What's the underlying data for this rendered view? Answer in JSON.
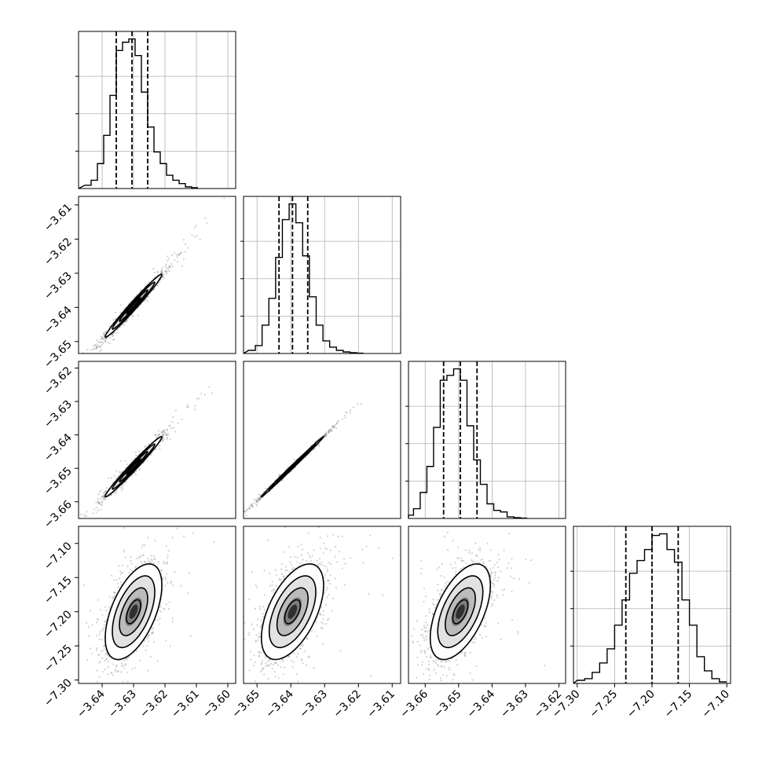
{
  "chart_data": [
    {
      "type": "histogram",
      "parameter": 1,
      "x_ticks": [
        "−3.64",
        "−3.63",
        "−3.62",
        "−3.61",
        "−3.60"
      ],
      "quantiles": [
        -3.6355,
        -3.6305,
        -3.6255
      ],
      "bin_centers": [
        -3.6445,
        -3.6425,
        -3.6405,
        -3.6385,
        -3.6365,
        -3.6345,
        -3.6325,
        -3.6305,
        -3.6285,
        -3.6265,
        -3.6245,
        -3.6225,
        -3.6205,
        -3.6185,
        -3.6165,
        -3.6145,
        -3.6125,
        -3.6105
      ],
      "counts": [
        2,
        5,
        15,
        32,
        56,
        83,
        88,
        90,
        80,
        58,
        37,
        22,
        15,
        8,
        5,
        3,
        1,
        0.5
      ]
    },
    {
      "type": "histogram",
      "parameter": 2,
      "x_ticks": [
        "−3.65",
        "−3.64",
        "−3.63",
        "−3.62",
        "−3.61"
      ],
      "quantiles": [
        -3.6435,
        -3.6395,
        -3.635
      ],
      "bin_centers": [
        -3.6515,
        -3.6495,
        -3.6475,
        -3.6455,
        -3.6435,
        -3.6415,
        -3.6395,
        -3.6375,
        -3.6355,
        -3.6335,
        -3.6315,
        -3.6295,
        -3.6275,
        -3.6255,
        -3.6235,
        -3.6215,
        -3.6195
      ],
      "counts": [
        2,
        5,
        18,
        35,
        61,
        85,
        95,
        83,
        62,
        36,
        18,
        8,
        4,
        2,
        1,
        0.5,
        0.2
      ]
    },
    {
      "type": "histogram",
      "parameter": 3,
      "x_ticks": [
        "−3.66",
        "−3.65",
        "−3.64",
        "−3.63",
        "−3.62"
      ],
      "quantiles": [
        -3.6545,
        -3.6495,
        -3.6445
      ],
      "bin_centers": [
        -3.6645,
        -3.6625,
        -3.6605,
        -3.6585,
        -3.6565,
        -3.6545,
        -3.6525,
        -3.6505,
        -3.6485,
        -3.6465,
        -3.6445,
        -3.6425,
        -3.6405,
        -3.6385,
        -3.6365,
        -3.6345,
        -3.6325,
        -3.6305
      ],
      "counts": [
        2,
        6,
        16,
        32,
        56,
        85,
        88,
        92,
        85,
        57,
        36,
        21,
        9,
        5,
        4,
        1,
        0.5,
        0.2
      ]
    },
    {
      "type": "histogram",
      "parameter": 4,
      "x_ticks": [
        "−7.30",
        "−7.25",
        "−7.20",
        "−7.15",
        "−7.10"
      ],
      "quantiles": [
        -7.235,
        -7.2,
        -7.165
      ],
      "bin_centers": [
        -7.295,
        -7.285,
        -7.275,
        -7.265,
        -7.255,
        -7.245,
        -7.235,
        -7.225,
        -7.215,
        -7.205,
        -7.195,
        -7.185,
        -7.175,
        -7.165,
        -7.155,
        -7.145,
        -7.135,
        -7.125,
        -7.115,
        -7.105
      ],
      "counts": [
        2,
        3,
        7,
        13,
        22,
        37,
        53,
        70,
        78,
        85,
        94,
        95,
        85,
        77,
        53,
        37,
        17,
        8,
        3,
        1
      ]
    },
    {
      "type": "scatter-contour",
      "pair": [
        1,
        2
      ],
      "x_range": [
        -3.6475,
        -3.5975
      ],
      "y_range": [
        -3.6535,
        -3.6075
      ],
      "y_ticks": [
        "−3.61",
        "−3.62",
        "−3.63",
        "−3.64",
        "−3.65"
      ],
      "center": [
        -3.63,
        -3.6395
      ],
      "sd": [
        0.0045,
        0.0046
      ],
      "rho": 0.985
    },
    {
      "type": "scatter-contour",
      "pair": [
        1,
        3
      ],
      "x_range": [
        -3.6475,
        -3.5975
      ],
      "y_range": [
        -3.665,
        -3.618
      ],
      "y_ticks": [
        "−3.62",
        "−3.63",
        "−3.64",
        "−3.65",
        "−3.66"
      ],
      "center": [
        -3.63,
        -3.6495
      ],
      "sd": [
        0.0045,
        0.0045
      ],
      "rho": 0.985
    },
    {
      "type": "scatter-contour",
      "pair": [
        2,
        3
      ],
      "x_range": [
        -3.654,
        -3.6075
      ],
      "y_range": [
        -3.665,
        -3.618
      ],
      "center": [
        -3.6395,
        -3.6495
      ],
      "sd": [
        0.0046,
        0.0045
      ],
      "rho": 0.998
    },
    {
      "type": "scatter-contour",
      "pair": [
        1,
        4
      ],
      "x_range": [
        -3.6475,
        -3.5975
      ],
      "y_range": [
        -7.305,
        -7.075
      ],
      "y_ticks": [
        "−7.10",
        "−7.15",
        "−7.20",
        "−7.25",
        "−7.30"
      ],
      "center": [
        -3.63,
        -7.2
      ],
      "sd": [
        0.0045,
        0.035
      ],
      "rho": 0.55
    },
    {
      "type": "scatter-contour",
      "pair": [
        2,
        4
      ],
      "x_range": [
        -3.654,
        -3.6075
      ],
      "y_range": [
        -7.305,
        -7.075
      ],
      "center": [
        -3.6395,
        -7.2
      ],
      "sd": [
        0.0046,
        0.035
      ],
      "rho": 0.55
    },
    {
      "type": "scatter-contour",
      "pair": [
        3,
        4
      ],
      "x_range": [
        -3.665,
        -3.618
      ],
      "y_range": [
        -7.305,
        -7.075
      ],
      "center": [
        -3.6495,
        -7.2
      ],
      "sd": [
        0.0045,
        0.035
      ],
      "rho": 0.55
    }
  ],
  "colors": {
    "axis": "#000000",
    "grid": "#b0b0b0",
    "points": "#7f7f7f",
    "line": "#000000"
  }
}
